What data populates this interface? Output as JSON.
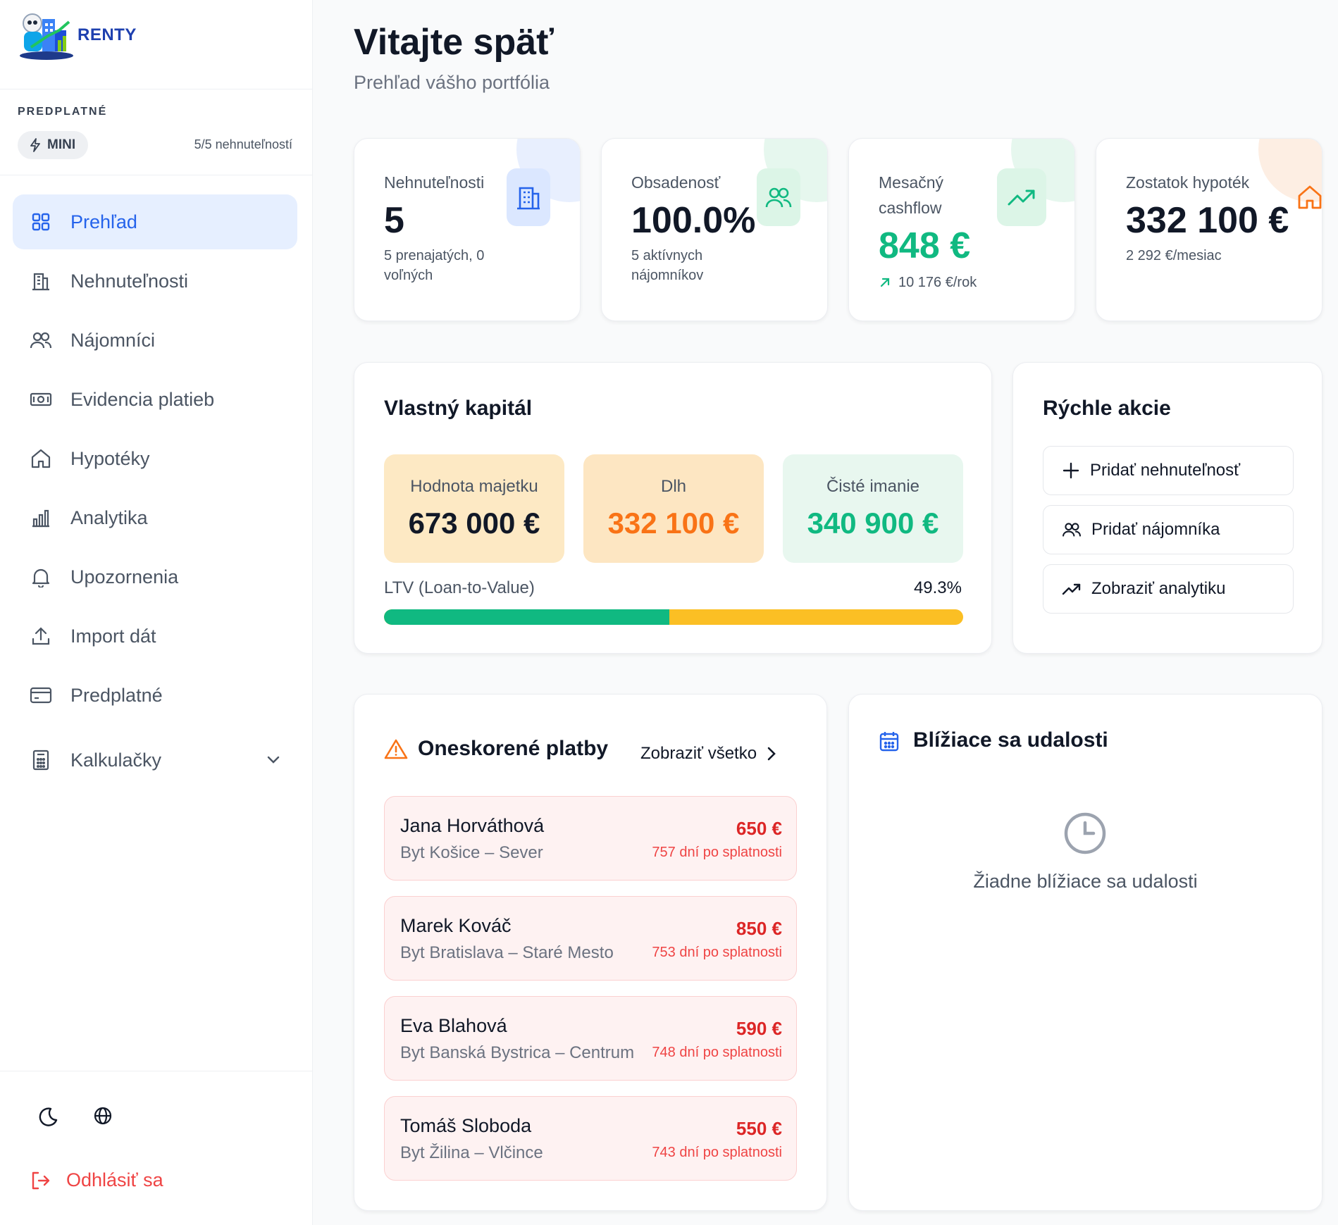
{
  "app": {
    "name": "RENTY"
  },
  "subscription": {
    "label": "PREDPLATNÉ",
    "plan": "MINI",
    "usage": "5/5 nehnuteľností"
  },
  "nav": {
    "items": [
      {
        "label": "Prehľad",
        "icon": "grid-icon",
        "active": true
      },
      {
        "label": "Nehnuteľnosti",
        "icon": "building-icon"
      },
      {
        "label": "Nájomníci",
        "icon": "users-icon"
      },
      {
        "label": "Evidencia platieb",
        "icon": "banknote-icon"
      },
      {
        "label": "Hypotéky",
        "icon": "home-icon"
      },
      {
        "label": "Analytika",
        "icon": "bar-chart-icon"
      },
      {
        "label": "Upozornenia",
        "icon": "bell-icon"
      },
      {
        "label": "Import dát",
        "icon": "upload-icon"
      },
      {
        "label": "Predplatné",
        "icon": "credit-card-icon"
      },
      {
        "label": "Kalkulačky",
        "icon": "calculator-icon"
      }
    ],
    "logout": "Odhlásiť sa"
  },
  "header": {
    "title": "Vitajte späť",
    "subtitle": "Prehľad vášho portfólia"
  },
  "stats": [
    {
      "title": "Nehnuteľnosti",
      "value": "5",
      "note": "5 prenajatých, 0 voľných",
      "icon": "building-icon",
      "color": "#2563eb"
    },
    {
      "title": "Obsadenosť",
      "value": "100.0%",
      "note": "5 aktívnych nájomníkov",
      "icon": "users-icon",
      "color": "#10b981"
    },
    {
      "title": "Mesačný cashflow",
      "value": "848 €",
      "note": "10 176 €/rok",
      "icon": "trending-up-icon",
      "color": "#10b981"
    },
    {
      "title": "Zostatok hypoték",
      "value": "332 100 €",
      "note": "2 292 €/mesiac",
      "icon": "home-icon",
      "color": "#f97316"
    }
  ],
  "equity": {
    "title": "Vlastný kapitál",
    "boxes": [
      {
        "label": "Hodnota majetku",
        "value": "673 000 €"
      },
      {
        "label": "Dlh",
        "value": "332 100 €"
      },
      {
        "label": "Čisté imanie",
        "value": "340 900 €"
      }
    ],
    "ltv_label": "LTV (Loan-to-Value)",
    "ltv_value": "49.3%",
    "ltv_fraction": 0.493
  },
  "quick_actions": {
    "title": "Rýchle akcie",
    "items": [
      {
        "label": "Pridať nehnuteľnosť",
        "icon": "plus-icon"
      },
      {
        "label": "Pridať nájomníka",
        "icon": "users-icon"
      },
      {
        "label": "Zobraziť analytiku",
        "icon": "trending-up-icon"
      }
    ]
  },
  "late_payments": {
    "title": "Oneskorené platby",
    "see_all": "Zobraziť všetko",
    "rows": [
      {
        "name": "Jana Horváthová",
        "property": "Byt Košice – Sever",
        "amount": "650 €",
        "days": "757 dní po splatnosti"
      },
      {
        "name": "Marek Kováč",
        "property": "Byt Bratislava – Staré Mesto",
        "amount": "850 €",
        "days": "753 dní po splatnosti"
      },
      {
        "name": "Eva Blahová",
        "property": "Byt Banská Bystrica – Centrum",
        "amount": "590 €",
        "days": "748 dní po splatnosti"
      },
      {
        "name": "Tomáš Sloboda",
        "property": "Byt Žilina – Vlčince",
        "amount": "550 €",
        "days": "743 dní po splatnosti"
      }
    ]
  },
  "events": {
    "title": "Blížiace sa udalosti",
    "empty": "Žiadne blížiace sa udalosti"
  },
  "colors": {
    "accent": "#2563eb",
    "success": "#10b981",
    "warning": "#f97316",
    "danger": "#dc2626",
    "asset_bg": "#fde9c4",
    "debt_bg": "#fde6c2",
    "net_bg": "#e8f7ef"
  }
}
